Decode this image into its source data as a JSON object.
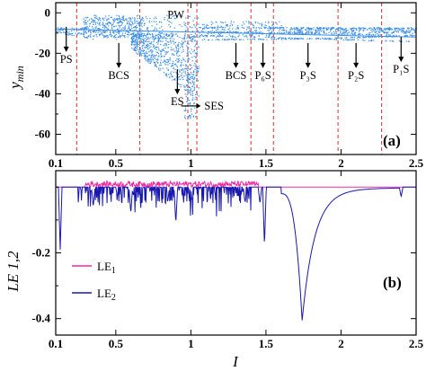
{
  "chart_data": [
    {
      "type": "scatter",
      "panel_label": "(a)",
      "ylabel": "y_min",
      "xlabel": "",
      "xlim": [
        0.1,
        2.5
      ],
      "ylim": [
        -70,
        5
      ],
      "x_ticks": [
        0.1,
        0.5,
        1,
        1.5,
        2,
        2.5
      ],
      "y_ticks": [
        0,
        -20,
        -40,
        -60
      ],
      "point_color": "#3a8ee6",
      "boundary_color": "#e04040",
      "region_boundaries": [
        0.24,
        0.66,
        0.98,
        1.04,
        1.4,
        1.55,
        1.98,
        2.27
      ],
      "annotations": [
        {
          "label": "PW",
          "x": 0.9,
          "y": -1
        },
        {
          "label": "PS",
          "x": 0.17,
          "y": -22
        },
        {
          "label": "BCS",
          "x": 0.52,
          "y": -30
        },
        {
          "label": "ES",
          "x": 0.91,
          "y": -43
        },
        {
          "label": "SES",
          "x": 1.09,
          "y": -46
        },
        {
          "label": "BCS",
          "x": 1.3,
          "y": -30
        },
        {
          "label": "P₆S",
          "x": 1.48,
          "y": -30
        },
        {
          "label": "P₃S",
          "x": 1.78,
          "y": -30
        },
        {
          "label": "P₂S",
          "x": 2.1,
          "y": -30
        },
        {
          "label": "P₁S",
          "x": 2.4,
          "y": -27
        }
      ]
    },
    {
      "type": "line",
      "panel_label": "(b)",
      "ylabel": "LE 1,2",
      "xlabel": "I",
      "xlim": [
        0.1,
        2.5
      ],
      "ylim": [
        -0.45,
        0.05
      ],
      "x_ticks": [
        0.1,
        0.5,
        1,
        1.5,
        2,
        2.5
      ],
      "y_ticks": [
        -0.2,
        -0.4
      ],
      "series": [
        {
          "name": "LE1",
          "color": "#ee2aa6",
          "baseline": 0.0
        },
        {
          "name": "LE2",
          "color": "#1818b0",
          "baseline": 0.0,
          "dips": [
            {
              "x": 0.13,
              "y": -0.19
            },
            {
              "x": 0.35,
              "y": -0.06
            },
            {
              "x": 0.6,
              "y": -0.08
            },
            {
              "x": 0.9,
              "y": -0.11
            },
            {
              "x": 1.46,
              "y": -0.05
            },
            {
              "x": 1.49,
              "y": -0.18
            },
            {
              "x": 1.74,
              "y": -0.4
            },
            {
              "x": 2.4,
              "y": -0.03
            }
          ]
        }
      ]
    }
  ],
  "legend": {
    "items": [
      {
        "label": "LE",
        "sub": "1",
        "color": "#ee2aa6"
      },
      {
        "label": "LE",
        "sub": "2",
        "color": "#1818b0"
      }
    ]
  }
}
